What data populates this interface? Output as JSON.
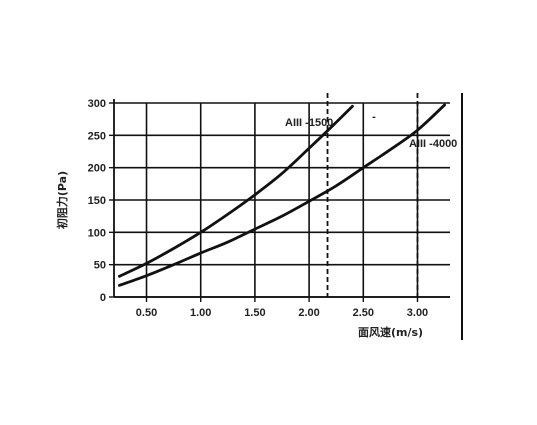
{
  "chart_data": {
    "type": "line",
    "xlabel": "面风速(m/s)",
    "ylabel": "初阻力(Pa)",
    "xlim": [
      0.2,
      3.3
    ],
    "ylim": [
      0,
      300
    ],
    "x_ticks": [
      {
        "value": 0.5,
        "label": "0.50"
      },
      {
        "value": 1.0,
        "label": "1.00"
      },
      {
        "value": 1.5,
        "label": "1.50"
      },
      {
        "value": 2.0,
        "label": "2.00"
      },
      {
        "value": 2.5,
        "label": "2.50"
      },
      {
        "value": 3.0,
        "label": "3.00"
      }
    ],
    "y_ticks": [
      {
        "value": 0,
        "label": "0"
      },
      {
        "value": 50,
        "label": "50"
      },
      {
        "value": 100,
        "label": "100"
      },
      {
        "value": 150,
        "label": "150"
      },
      {
        "value": 200,
        "label": "200"
      },
      {
        "value": 250,
        "label": "250"
      },
      {
        "value": 300,
        "label": "300"
      }
    ],
    "grid": true,
    "dashed_x_markers": [
      2.17,
      3.0
    ],
    "series": [
      {
        "name": "AIII -1500",
        "x": [
          0.25,
          0.5,
          0.75,
          1.0,
          1.25,
          1.5,
          1.75,
          2.0,
          2.2,
          2.4
        ],
        "y": [
          32,
          52,
          75,
          100,
          128,
          158,
          191,
          230,
          262,
          295
        ]
      },
      {
        "name": "AIII -4000",
        "x": [
          0.25,
          0.5,
          0.75,
          1.0,
          1.25,
          1.5,
          1.75,
          2.0,
          2.25,
          2.5,
          2.75,
          3.0,
          3.25
        ],
        "y": [
          18,
          33,
          50,
          68,
          85,
          105,
          125,
          148,
          172,
          200,
          228,
          258,
          297
        ]
      }
    ]
  }
}
